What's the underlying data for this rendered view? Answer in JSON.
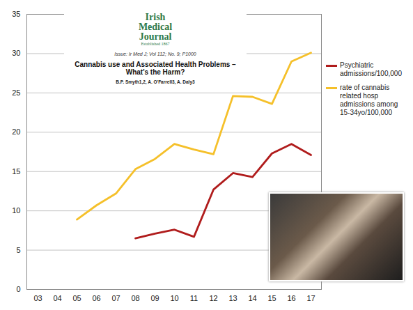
{
  "chart_data": {
    "type": "line",
    "categories": [
      "03",
      "04",
      "05",
      "06",
      "07",
      "08",
      "09",
      "10",
      "11",
      "12",
      "13",
      "14",
      "15",
      "16",
      "17"
    ],
    "series": [
      {
        "name": "Psychiatric admissions/100,000",
        "color": "#b01c1c",
        "values": [
          null,
          null,
          null,
          null,
          null,
          6.5,
          7.1,
          7.6,
          6.7,
          12.7,
          14.8,
          14.3,
          17.3,
          18.5,
          17.1
        ]
      },
      {
        "name": "rate of cannabis related hosp admissions among 15-34yo/100,000",
        "color": "#f5c02a",
        "values": [
          null,
          null,
          8.9,
          10.7,
          12.2,
          15.3,
          16.6,
          18.5,
          17.8,
          17.2,
          24.6,
          24.5,
          23.6,
          29.0,
          30.1
        ]
      }
    ],
    "ylim": [
      0,
      35
    ],
    "yticks": [
      0,
      5,
      10,
      15,
      20,
      25,
      30,
      35
    ],
    "grid": true,
    "legend": "right",
    "annotations": [
      "Irish Medical Journal",
      "Established 1867",
      "Issue: Ir Med J; Vol 112; No. 9; P1000",
      "Cannabis use and Associated Health Problems – What's the Harm?",
      "B.P. Smyth1,2, A. O'Farrell3, A. Daly3"
    ]
  }
}
